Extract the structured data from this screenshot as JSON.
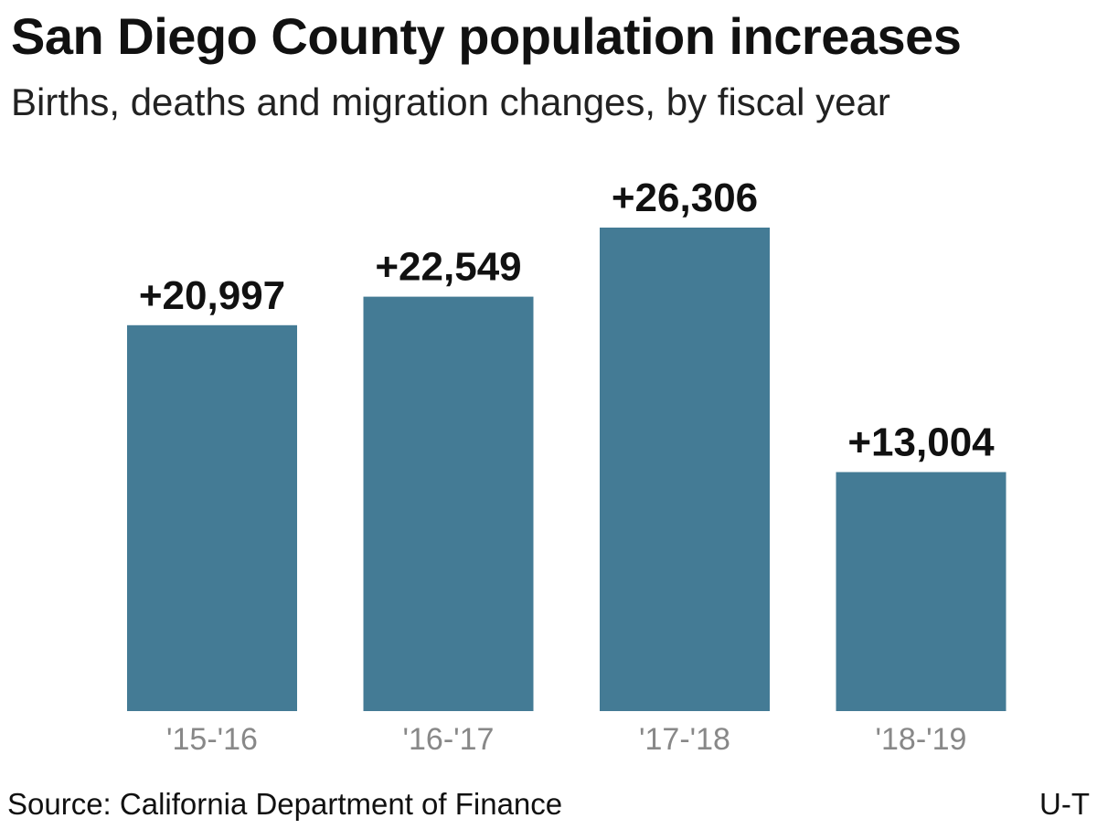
{
  "header": {
    "title": "San Diego County population increases",
    "subtitle": "Births, deaths and migration changes, by fiscal year"
  },
  "footer": {
    "source": "Source: California Department of Finance",
    "credit": "U-T"
  },
  "colors": {
    "bar": "#447b95",
    "value_label": "#111111",
    "tick_label": "#888888"
  },
  "chart_data": {
    "type": "bar",
    "title": "San Diego County population increases",
    "subtitle": "Births, deaths and migration changes, by fiscal year",
    "categories": [
      "'15-'16",
      "'16-'17",
      "'17-'18",
      "'18-'19"
    ],
    "values": [
      20997,
      22549,
      26306,
      13004
    ],
    "data_labels": [
      "+20,997",
      "+22,549",
      "+26,306",
      "+13,004"
    ],
    "xlabel": "",
    "ylabel": "",
    "ylim": [
      0,
      26306
    ],
    "grid": false,
    "legend": "none"
  }
}
